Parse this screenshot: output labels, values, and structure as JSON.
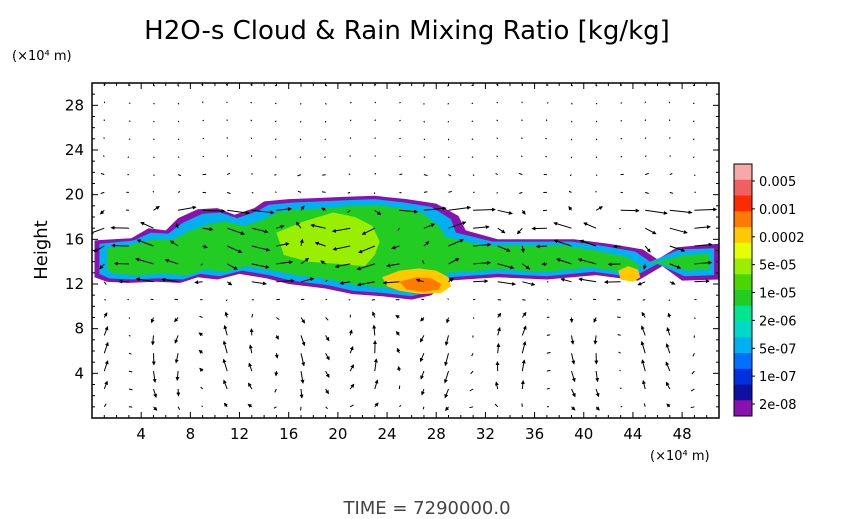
{
  "chart_data": {
    "type": "heatmap",
    "title": "H2O-s Cloud & Rain Mixing Ratio [kg/kg]",
    "ylabel": "Height",
    "x_unit": "(×10⁴ m)",
    "y_unit": "(×10⁴ m)",
    "xlim": [
      0,
      51
    ],
    "ylim": [
      0,
      30
    ],
    "x_ticks": [
      4,
      8,
      12,
      16,
      20,
      24,
      28,
      32,
      36,
      40,
      44,
      48
    ],
    "y_ticks": [
      4,
      8,
      12,
      16,
      20,
      24,
      28
    ],
    "colorbar": {
      "labels": [
        "0.005",
        "0.001",
        "0.0002",
        "5e-05",
        "1e-05",
        "2e-06",
        "5e-07",
        "1e-07",
        "2e-08"
      ],
      "colors": [
        "#f7a8a8",
        "#f06060",
        "#ff2a00",
        "#ff7a00",
        "#ffc800",
        "#e6ff00",
        "#9aef00",
        "#4ad600",
        "#22cc22",
        "#00e690",
        "#00d8c8",
        "#00b0f0",
        "#0070ff",
        "#0030e0",
        "#1010a0",
        "#8a10b0"
      ]
    },
    "contours": [
      {
        "level": "2e-08",
        "color": "#8a10b0",
        "x": [
          0.2,
          3.2,
          4.6,
          6.0,
          7.0,
          8.6,
          10.2,
          11.6,
          13.2,
          14.0,
          16.0,
          18.4,
          20.4,
          23.0,
          25.6,
          28.0,
          29.8,
          30.4,
          33.0,
          36.2,
          39.2,
          42.0,
          44.8,
          46.0,
          47.6,
          51.0,
          51.0,
          48.0,
          46.4,
          44.4,
          41.0,
          37.0,
          33.0,
          29.0,
          27.6,
          26.0,
          23.6,
          21.2,
          19.0,
          16.0,
          14.2,
          12.0,
          10.2,
          8.6,
          7.2,
          5.2,
          3.0,
          1.2,
          0.2
        ],
        "y": [
          15.9,
          16.1,
          17.0,
          16.8,
          17.9,
          18.7,
          18.8,
          18.2,
          18.8,
          19.4,
          19.6,
          19.7,
          19.8,
          19.9,
          19.6,
          19.2,
          18.1,
          16.8,
          16.0,
          16.0,
          16.0,
          15.6,
          15.1,
          14.2,
          15.3,
          15.6,
          12.4,
          12.3,
          13.6,
          12.3,
          12.8,
          12.4,
          12.6,
          12.3,
          11.0,
          10.6,
          10.9,
          11.1,
          11.6,
          12.0,
          12.5,
          12.9,
          12.4,
          12.6,
          12.1,
          12.2,
          12.1,
          12.2,
          12.6
        ]
      },
      {
        "level": "5e-07",
        "color": "#00b0f0",
        "x": [
          0.6,
          3.4,
          4.8,
          6.2,
          7.4,
          9.0,
          10.4,
          11.8,
          13.4,
          14.4,
          16.4,
          18.6,
          20.6,
          23.0,
          25.4,
          27.6,
          29.2,
          29.6,
          32.6,
          36.0,
          39.0,
          41.6,
          44.2,
          45.4,
          47.8,
          50.6,
          50.6,
          48.2,
          46.0,
          44.0,
          40.8,
          37.0,
          33.0,
          29.0,
          27.4,
          26.0,
          23.6,
          21.2,
          19.2,
          16.2,
          14.4,
          12.2,
          10.4,
          8.8,
          7.4,
          5.4,
          3.2,
          1.4,
          0.6
        ],
        "y": [
          15.6,
          15.9,
          16.6,
          16.5,
          17.5,
          18.3,
          18.4,
          17.9,
          18.5,
          19.1,
          19.3,
          19.4,
          19.5,
          19.6,
          19.3,
          18.9,
          17.8,
          16.6,
          15.8,
          15.8,
          15.8,
          15.4,
          14.9,
          14.0,
          15.1,
          15.2,
          12.8,
          12.7,
          13.8,
          12.6,
          13.1,
          12.7,
          12.9,
          12.6,
          11.3,
          10.9,
          11.2,
          11.4,
          11.9,
          12.3,
          12.8,
          13.2,
          12.7,
          12.9,
          12.4,
          12.5,
          12.4,
          12.5,
          12.9
        ]
      },
      {
        "level": "1e-05",
        "color": "#22cc22",
        "x": [
          1.2,
          3.6,
          5.0,
          6.6,
          8.0,
          9.6,
          10.8,
          12.4,
          14.0,
          15.2,
          17.0,
          19.2,
          21.0,
          23.0,
          25.0,
          26.8,
          28.2,
          28.8,
          32.0,
          35.6,
          38.6,
          41.0,
          43.6,
          44.6,
          48.2,
          50.2,
          50.2,
          48.4,
          45.6,
          43.6,
          40.6,
          37.0,
          33.0,
          29.0,
          27.2,
          26.0,
          23.6,
          21.4,
          19.4,
          16.6,
          14.8,
          12.6,
          10.8,
          9.2,
          7.8,
          5.8,
          3.6,
          1.8,
          1.2
        ],
        "y": [
          15.2,
          15.6,
          16.0,
          16.0,
          16.8,
          17.4,
          17.6,
          17.2,
          17.8,
          18.5,
          18.7,
          18.8,
          19.0,
          19.1,
          18.8,
          18.4,
          17.2,
          16.2,
          15.4,
          15.4,
          15.4,
          15.0,
          14.4,
          13.6,
          14.6,
          14.7,
          13.3,
          13.2,
          14.0,
          13.0,
          13.5,
          13.1,
          13.3,
          13.0,
          11.8,
          11.4,
          11.7,
          11.9,
          12.4,
          12.8,
          13.2,
          13.6,
          13.1,
          13.3,
          12.8,
          12.9,
          12.8,
          12.9,
          13.3
        ]
      },
      {
        "level": "1e-05",
        "color": "#9aef00",
        "x": [
          15.0,
          17.2,
          19.6,
          21.4,
          22.8,
          23.4,
          23.0,
          22.2,
          20.0,
          17.6,
          15.6,
          15.0
        ],
        "y": [
          16.6,
          17.6,
          18.4,
          18.0,
          17.2,
          15.8,
          14.6,
          13.6,
          13.8,
          14.0,
          14.6,
          16.6
        ]
      },
      {
        "level": "5e-05",
        "color": "#ffc800",
        "x": [
          23.6,
          25.0,
          26.6,
          28.0,
          29.0,
          29.2,
          28.4,
          26.8,
          25.0,
          24.0,
          23.6
        ],
        "y": [
          12.6,
          13.2,
          13.4,
          13.2,
          12.6,
          11.8,
          11.2,
          11.1,
          11.4,
          11.8,
          12.6
        ]
      },
      {
        "level": "0.0002",
        "color": "#ff7a00",
        "x": [
          25.0,
          26.4,
          27.6,
          28.4,
          28.2,
          27.0,
          25.6,
          25.0
        ],
        "y": [
          12.2,
          12.6,
          12.5,
          12.0,
          11.5,
          11.3,
          11.5,
          12.2
        ]
      },
      {
        "level": "5e-05",
        "color": "#ffc800",
        "x": [
          42.8,
          43.6,
          44.4,
          44.6,
          44.0,
          43.0,
          42.8
        ],
        "y": [
          13.2,
          13.6,
          13.3,
          12.6,
          12.2,
          12.4,
          13.2
        ]
      }
    ],
    "vector_field": {
      "description": "wind vectors",
      "x_spacing": 2.0,
      "y_spacing": 1.6
    }
  },
  "time_label": "TIME = 7290000.0"
}
